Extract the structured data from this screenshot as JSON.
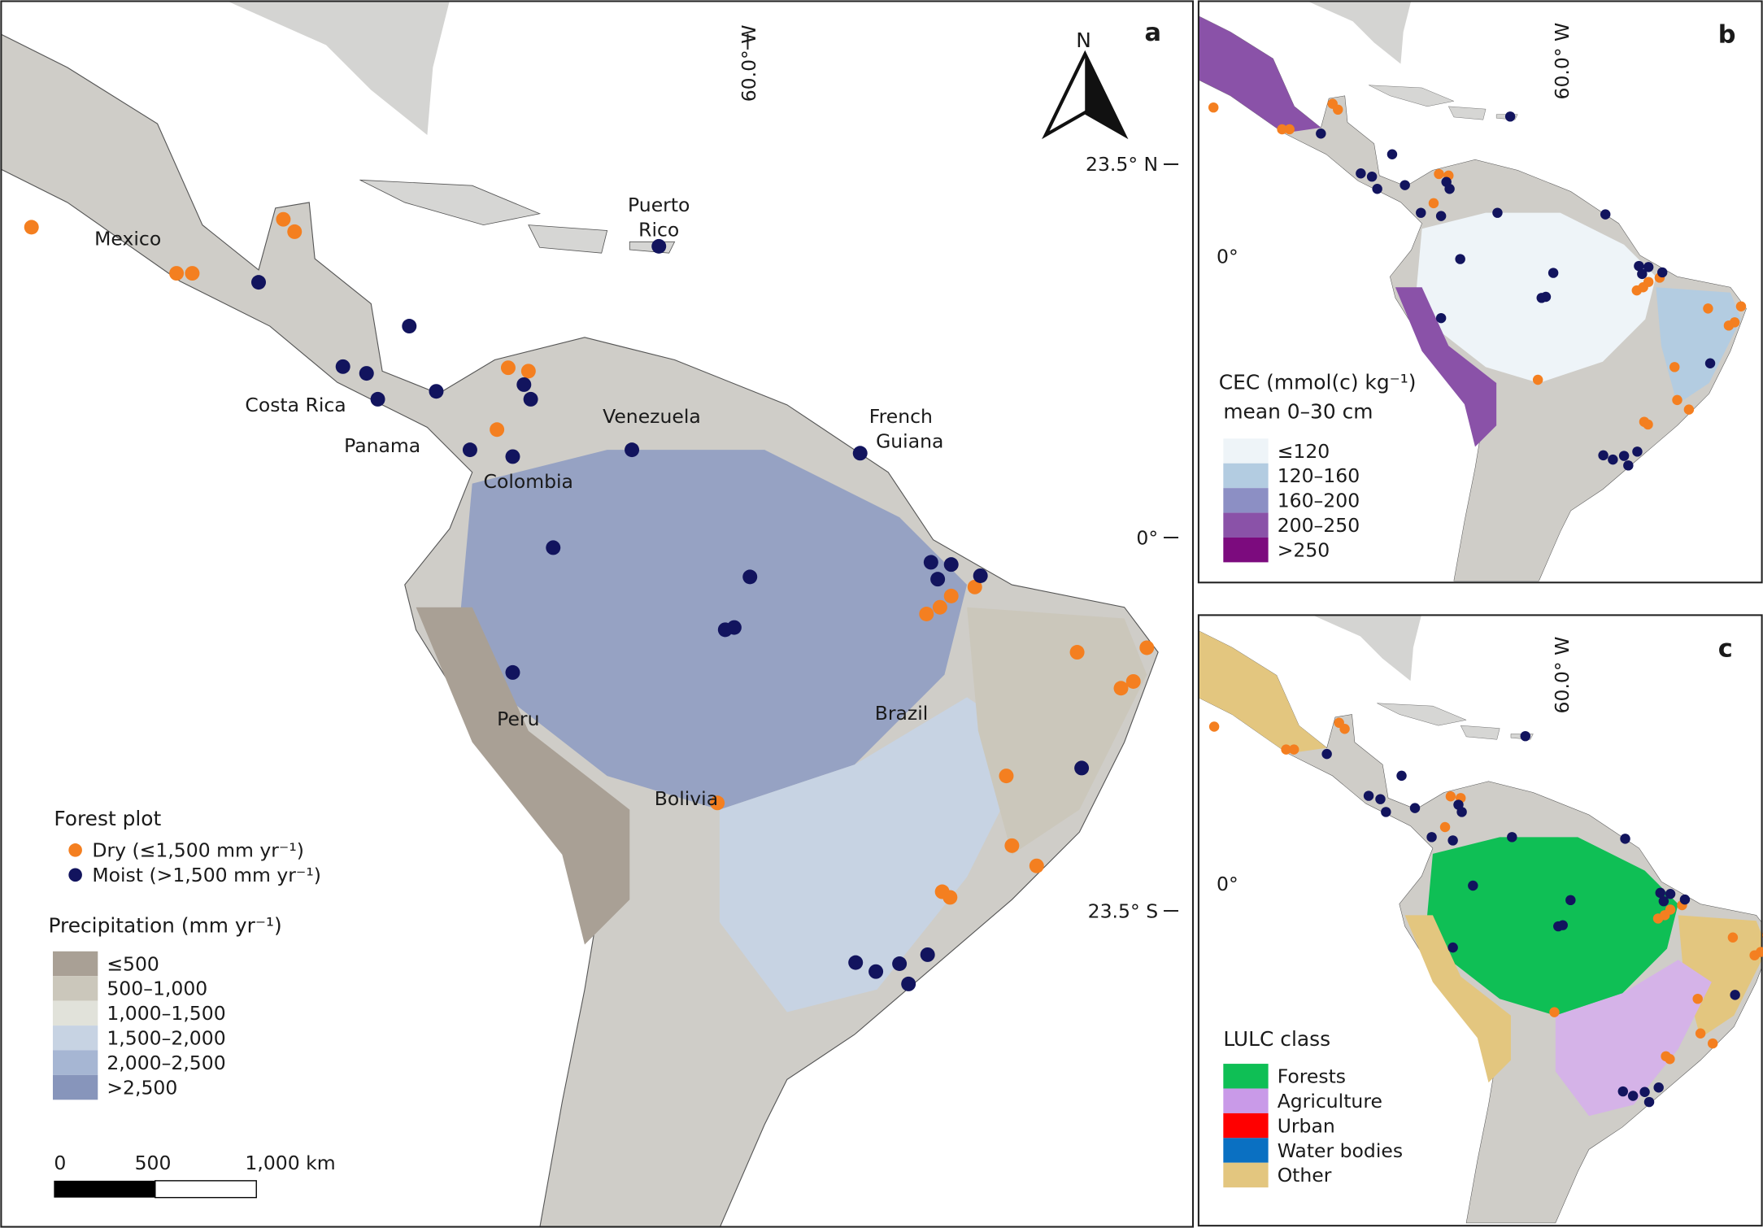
{
  "panel_a": {
    "letter": "a",
    "north": "N",
    "lon_label": "60.0° W",
    "lat_labels": [
      "23.5° N",
      "0°",
      "23.5° S"
    ],
    "places": [
      {
        "lines": [
          "Mexico"
        ]
      },
      {
        "lines": [
          "Puerto",
          "Rico"
        ]
      },
      {
        "lines": [
          "Costa Rica"
        ]
      },
      {
        "lines": [
          "Panama"
        ]
      },
      {
        "lines": [
          "Venezuela"
        ]
      },
      {
        "lines": [
          "French",
          "Guiana"
        ]
      },
      {
        "lines": [
          "Colombia"
        ]
      },
      {
        "lines": [
          "Peru"
        ]
      },
      {
        "lines": [
          "Brazil"
        ]
      },
      {
        "lines": [
          "Bolivia"
        ]
      }
    ],
    "plot_legend": {
      "title": "Forest plot",
      "items": [
        {
          "label": "Dry (≤1,500 mm yr⁻¹)",
          "color": "#f47f20"
        },
        {
          "label": "Moist (>1,500 mm yr⁻¹)",
          "color": "#12145e"
        }
      ]
    },
    "precip_legend": {
      "title": "Precipitation (mm yr⁻¹)",
      "items": [
        {
          "label": "≤500",
          "color": "#a9a095"
        },
        {
          "label": "500–1,000",
          "color": "#cbc7bb"
        },
        {
          "label": "1,000–1,500",
          "color": "#e1e2da"
        },
        {
          "label": "1,500–2,000",
          "color": "#c7d3e3"
        },
        {
          "label": "2,000–2,500",
          "color": "#a6b6d3"
        },
        {
          "label": ">2,500",
          "color": "#8795bb"
        }
      ]
    },
    "scale_labels": [
      "0",
      "500",
      "1,000 km"
    ]
  },
  "panel_b": {
    "letter": "b",
    "lon_label": "60.0° W",
    "lat_label": "0°",
    "legend": {
      "title_lines": [
        "CEC (mmol(c) kg⁻¹)",
        "mean 0–30 cm"
      ],
      "items": [
        {
          "label": "≤120",
          "color": "#eef4f8"
        },
        {
          "label": "120–160",
          "color": "#b3cce1"
        },
        {
          "label": "160–200",
          "color": "#8c8fc4"
        },
        {
          "label": "200–250",
          "color": "#8a52a8"
        },
        {
          "label": ">250",
          "color": "#7c0b7e"
        }
      ]
    }
  },
  "panel_c": {
    "letter": "c",
    "lon_label": "60.0° W",
    "lat_label": "0°",
    "legend": {
      "title": "LULC class",
      "items": [
        {
          "label": "Forests",
          "color": "#0fbf55"
        },
        {
          "label": "Agriculture",
          "color": "#c99ae8"
        },
        {
          "label": "Urban",
          "color": "#ff0000"
        },
        {
          "label": "Water bodies",
          "color": "#0a70c2"
        },
        {
          "label": "Other",
          "color": "#e3c67f"
        }
      ]
    }
  }
}
